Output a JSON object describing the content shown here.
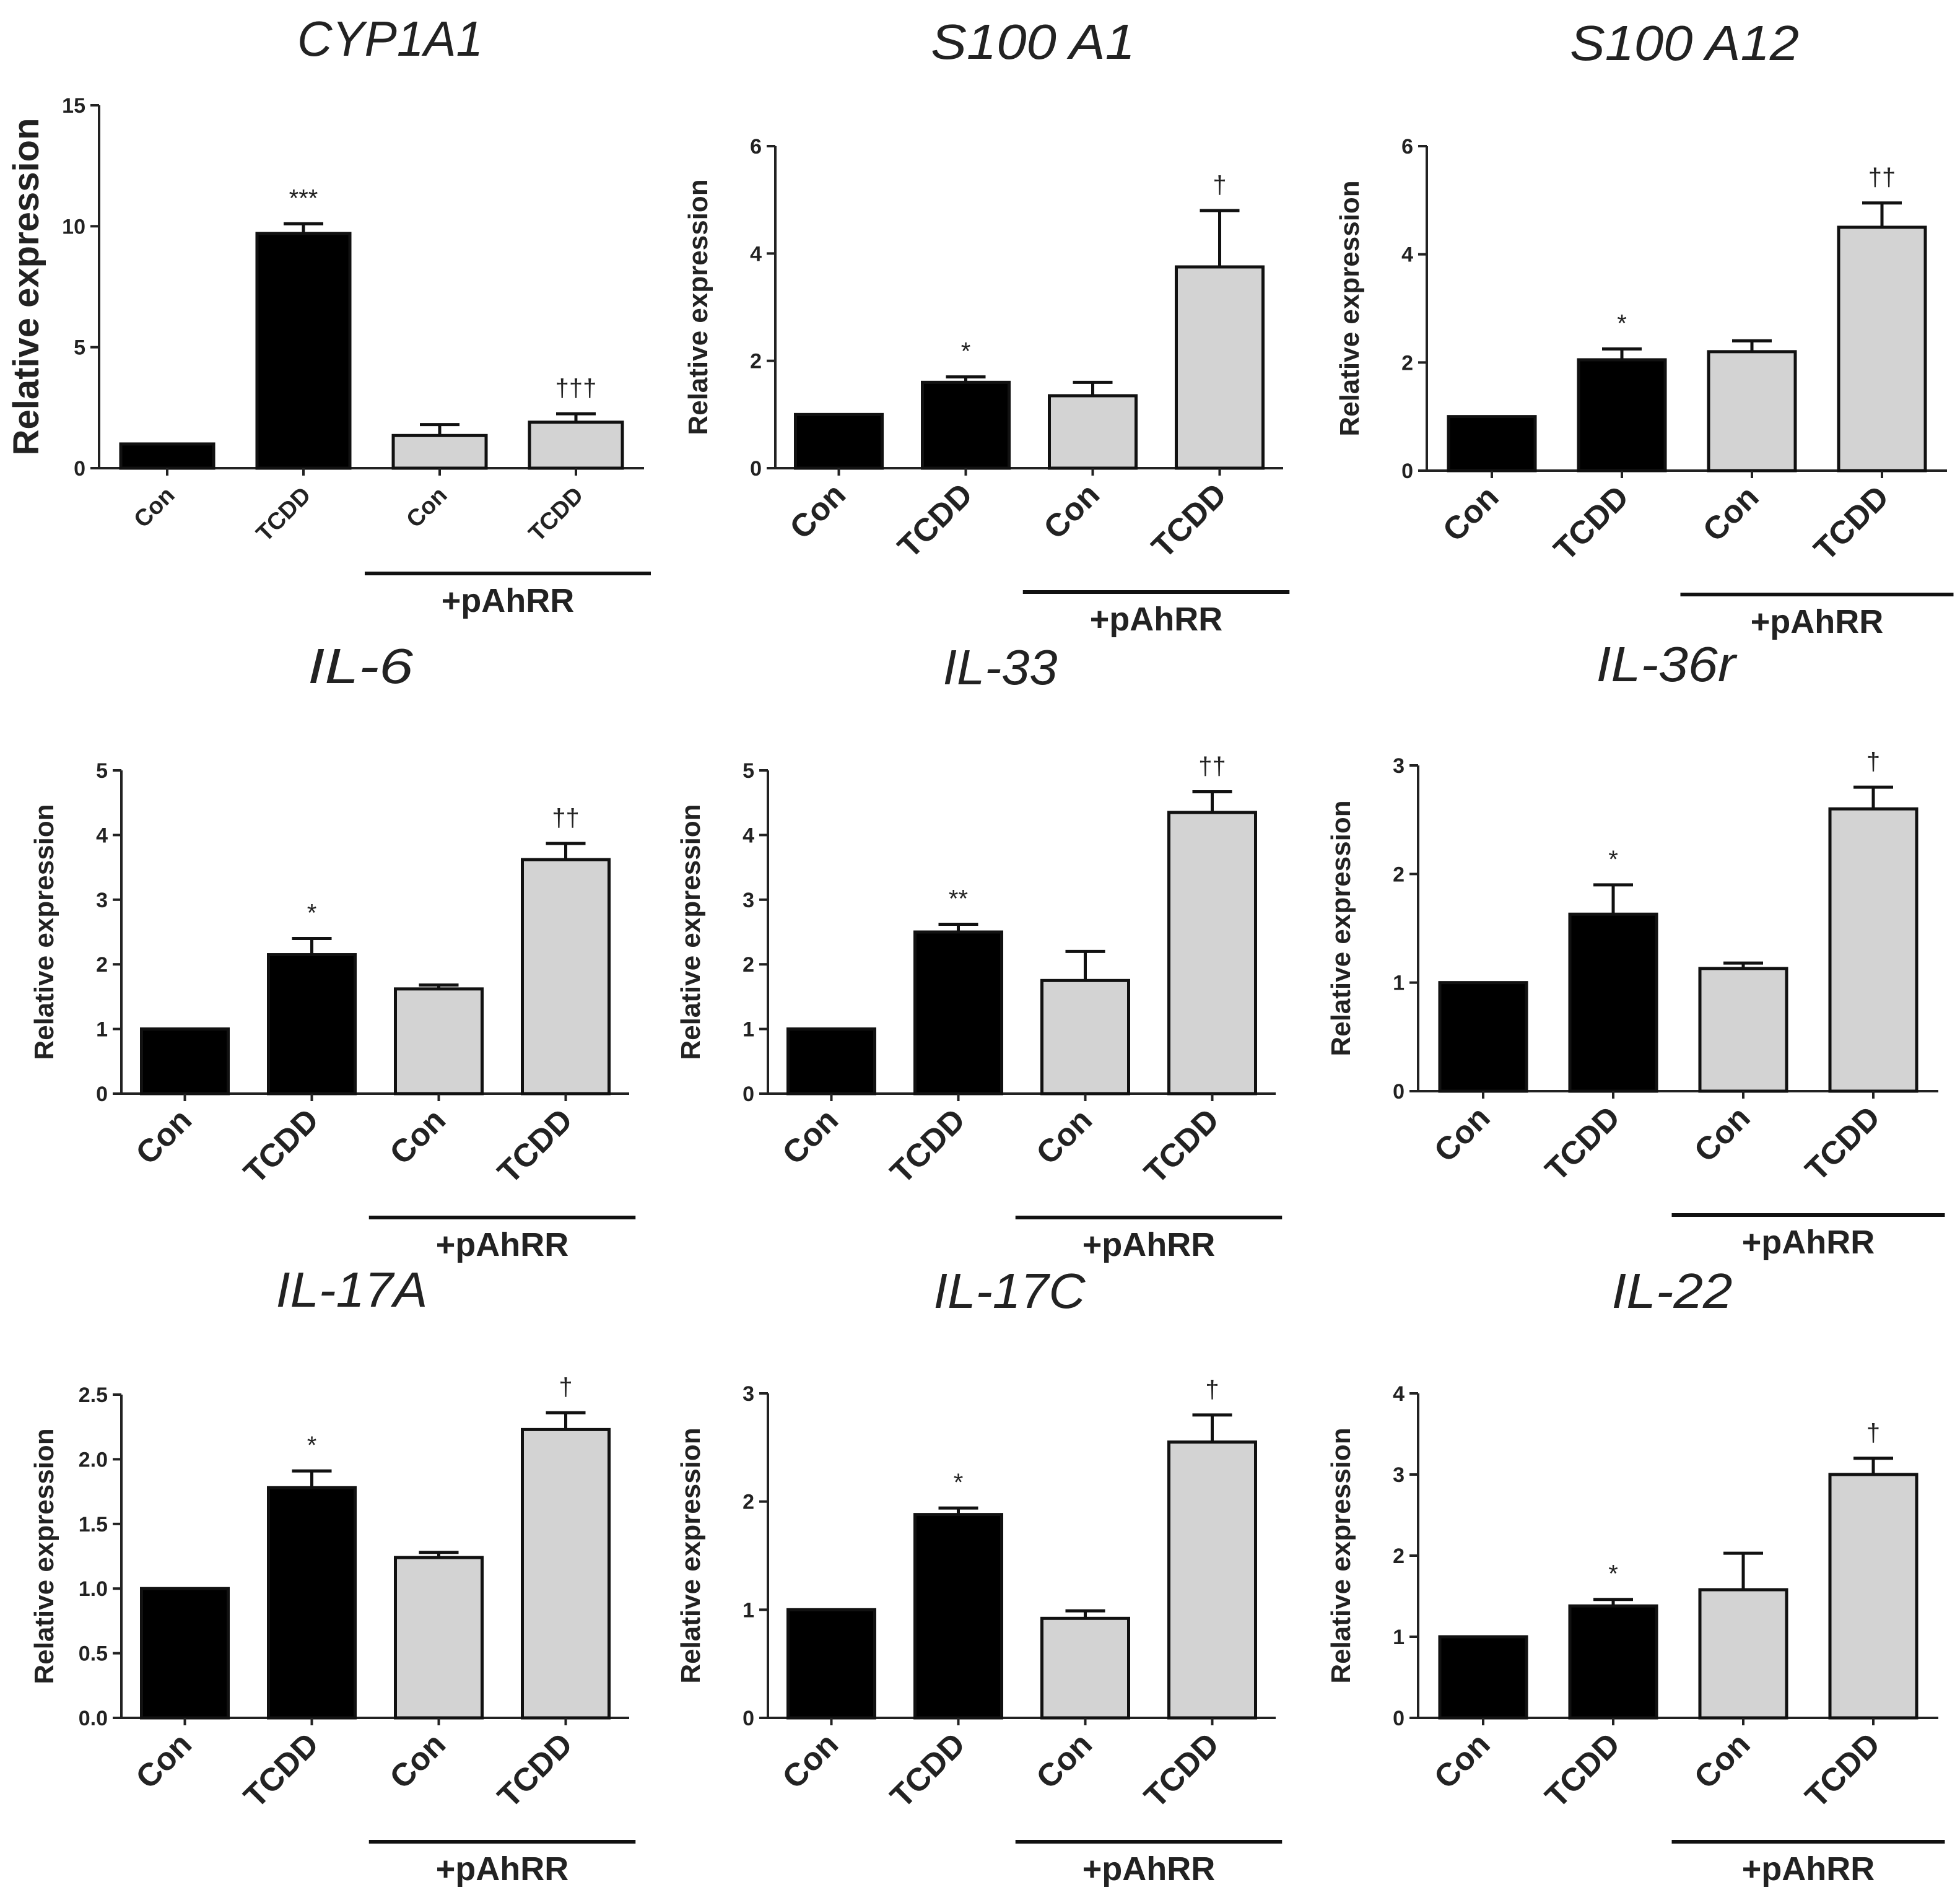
{
  "chart_data": [
    {
      "type": "bar",
      "title": "CYP1A1",
      "ylabel": "Relative expression",
      "ylim": [
        0,
        15
      ],
      "yticks": [
        "0",
        "5",
        "10",
        "15"
      ],
      "categories": [
        "Con",
        "TCDD",
        "Con",
        "TCDD"
      ],
      "group_label": "+pAhRR",
      "values": [
        1.0,
        9.7,
        1.35,
        1.9
      ],
      "errors": [
        0.0,
        0.4,
        0.45,
        0.35
      ],
      "annotations": [
        "",
        "***",
        "",
        "†††"
      ],
      "colors": [
        "#000000",
        "#000000",
        "#d3d3d3",
        "#d3d3d3"
      ]
    },
    {
      "type": "bar",
      "title": "S100 A1",
      "ylabel": "Relative expression",
      "ylim": [
        0,
        6
      ],
      "yticks": [
        "0",
        "2",
        "4",
        "6"
      ],
      "categories": [
        "Con",
        "TCDD",
        "Con",
        "TCDD"
      ],
      "group_label": "+pAhRR",
      "values": [
        1.0,
        1.6,
        1.35,
        3.75
      ],
      "errors": [
        0.0,
        0.1,
        0.25,
        1.05
      ],
      "annotations": [
        "",
        "*",
        "",
        "†"
      ],
      "colors": [
        "#000000",
        "#000000",
        "#d3d3d3",
        "#d3d3d3"
      ]
    },
    {
      "type": "bar",
      "title": "S100 A12",
      "ylabel": "Relative expression",
      "ylim": [
        0,
        6
      ],
      "yticks": [
        "0",
        "2",
        "4",
        "6"
      ],
      "categories": [
        "Con",
        "TCDD",
        "Con",
        "TCDD"
      ],
      "group_label": "+pAhRR",
      "values": [
        1.0,
        2.05,
        2.2,
        4.5
      ],
      "errors": [
        0.0,
        0.2,
        0.2,
        0.45
      ],
      "annotations": [
        "",
        "*",
        "",
        "††"
      ],
      "colors": [
        "#000000",
        "#000000",
        "#d3d3d3",
        "#d3d3d3"
      ]
    },
    {
      "type": "bar",
      "title": "IL-6",
      "ylabel": "Relative expression",
      "ylim": [
        0,
        5
      ],
      "yticks": [
        "0",
        "1",
        "2",
        "3",
        "4",
        "5"
      ],
      "categories": [
        "Con",
        "TCDD",
        "Con",
        "TCDD"
      ],
      "group_label": "+pAhRR",
      "values": [
        1.0,
        2.15,
        1.62,
        3.62
      ],
      "errors": [
        0.0,
        0.25,
        0.06,
        0.25
      ],
      "annotations": [
        "",
        "*",
        "",
        "††"
      ],
      "colors": [
        "#000000",
        "#000000",
        "#d3d3d3",
        "#d3d3d3"
      ]
    },
    {
      "type": "bar",
      "title": "IL-33",
      "ylabel": "Relative expression",
      "ylim": [
        0,
        5
      ],
      "yticks": [
        "0",
        "1",
        "2",
        "3",
        "4",
        "5"
      ],
      "categories": [
        "Con",
        "TCDD",
        "Con",
        "TCDD"
      ],
      "group_label": "+pAhRR",
      "values": [
        1.0,
        2.5,
        1.75,
        4.35
      ],
      "errors": [
        0.0,
        0.12,
        0.45,
        0.32
      ],
      "annotations": [
        "",
        "**",
        "",
        "††"
      ],
      "colors": [
        "#000000",
        "#000000",
        "#d3d3d3",
        "#d3d3d3"
      ]
    },
    {
      "type": "bar",
      "title": "IL-36r",
      "ylabel": "Relative expression",
      "ylim": [
        0,
        3
      ],
      "yticks": [
        "0",
        "1",
        "2",
        "3"
      ],
      "categories": [
        "Con",
        "TCDD",
        "Con",
        "TCDD"
      ],
      "group_label": "+pAhRR",
      "values": [
        1.0,
        1.63,
        1.13,
        2.6
      ],
      "errors": [
        0.0,
        0.27,
        0.05,
        0.2
      ],
      "annotations": [
        "",
        "*",
        "",
        "†"
      ],
      "colors": [
        "#000000",
        "#000000",
        "#d3d3d3",
        "#d3d3d3"
      ]
    },
    {
      "type": "bar",
      "title": "IL-17A",
      "ylabel": "Relative expression",
      "ylim": [
        0,
        2.5
      ],
      "yticks": [
        "0.0",
        "0.5",
        "1.0",
        "1.5",
        "2.0",
        "2.5"
      ],
      "categories": [
        "Con",
        "TCDD",
        "Con",
        "TCDD"
      ],
      "group_label": "+pAhRR",
      "values": [
        1.0,
        1.78,
        1.24,
        2.23
      ],
      "errors": [
        0.0,
        0.13,
        0.04,
        0.13
      ],
      "annotations": [
        "",
        "*",
        "",
        "†"
      ],
      "colors": [
        "#000000",
        "#000000",
        "#d3d3d3",
        "#d3d3d3"
      ]
    },
    {
      "type": "bar",
      "title": "IL-17C",
      "ylabel": "Relative expression",
      "ylim": [
        0,
        3
      ],
      "yticks": [
        "0",
        "1",
        "2",
        "3"
      ],
      "categories": [
        "Con",
        "TCDD",
        "Con",
        "TCDD"
      ],
      "group_label": "+pAhRR",
      "values": [
        1.0,
        1.88,
        0.92,
        2.55
      ],
      "errors": [
        0.0,
        0.06,
        0.07,
        0.25
      ],
      "annotations": [
        "",
        "*",
        "",
        "†"
      ],
      "colors": [
        "#000000",
        "#000000",
        "#d3d3d3",
        "#d3d3d3"
      ]
    },
    {
      "type": "bar",
      "title": "IL-22",
      "ylabel": "Relative expression",
      "ylim": [
        0,
        4
      ],
      "yticks": [
        "0",
        "1",
        "2",
        "3",
        "4"
      ],
      "categories": [
        "Con",
        "TCDD",
        "Con",
        "TCDD"
      ],
      "group_label": "+pAhRR",
      "values": [
        1.0,
        1.38,
        1.58,
        3.0
      ],
      "errors": [
        0.0,
        0.08,
        0.45,
        0.2
      ],
      "annotations": [
        "",
        "*",
        "",
        "†"
      ],
      "colors": [
        "#000000",
        "#000000",
        "#d3d3d3",
        "#d3d3d3"
      ]
    }
  ]
}
